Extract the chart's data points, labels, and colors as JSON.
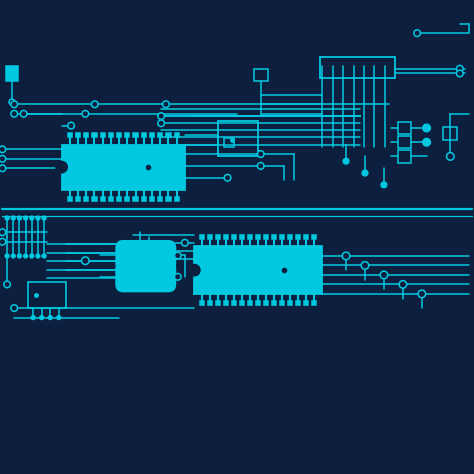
{
  "bg_color": "#0d1f3e",
  "lc": "#00c8e0",
  "figsize": [
    4.74,
    4.74
  ],
  "dpi": 100
}
